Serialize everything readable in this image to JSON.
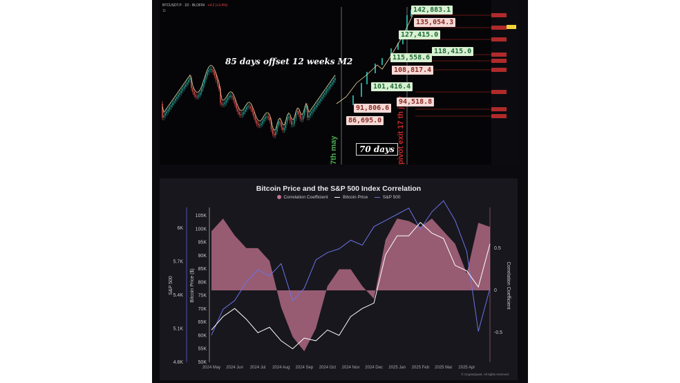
{
  "top_chart": {
    "ticker": "BTCUSDT.P · 1D · BLOFIN",
    "ticker_change": "+4.2 (+3.4%)",
    "ticker_sub": "11",
    "annotation_main": "85 days offset 12 weeks M2",
    "annotation_days": "70 days",
    "vertical_label_left": "7th may",
    "vertical_label_right": "pivot exit 17 th july",
    "colors": {
      "up": "#26a69a",
      "down": "#ef5350",
      "m2": "#f2e0a0",
      "green_label": "#4caf50",
      "red_label": "#c62828"
    },
    "price_labels": [
      {
        "text": "142,883.1",
        "style": "green"
      },
      {
        "text": "135,054.3",
        "style": "red"
      },
      {
        "text": "127,415.0",
        "style": "green"
      },
      {
        "text": "118,415.0",
        "style": "green"
      },
      {
        "text": "115,558.6",
        "style": "green"
      },
      {
        "text": "108,817.4",
        "style": "red"
      },
      {
        "text": "101,416.4",
        "style": "green"
      },
      {
        "text": "94,518.8",
        "style": "red"
      },
      {
        "text": "91,806.6",
        "style": "red"
      },
      {
        "text": "86,695.0",
        "style": "red"
      }
    ]
  },
  "chart_data": {
    "type": "line",
    "title": "Bitcoin Price and the S&P 500 Index Correlation",
    "legend": [
      "Correlation Coefficient",
      "Bitcoin Price",
      "S&P 500"
    ],
    "x_tick_labels": [
      "2024 May",
      "2024 Jun",
      "2024 Jul",
      "2024 Aug",
      "2024 Sep",
      "2024 Oct",
      "2024 Nov",
      "2024 Dec",
      "2025 Jan",
      "2025 Feb",
      "2025 Mar",
      "2025 Apr"
    ],
    "left_axis_sp500": {
      "label": "S&P 500",
      "ticks": [
        "6K",
        "5.7K",
        "5.4K",
        "5.1K",
        "4.8K"
      ],
      "ylim": [
        4800,
        6000
      ]
    },
    "left_axis_btc": {
      "label": "Bitcoin Price ($)",
      "ticks": [
        "105K",
        "100K",
        "95K",
        "90K",
        "85K",
        "80K",
        "75K",
        "70K",
        "65K",
        "60K",
        "55K",
        "50K"
      ],
      "ylim": [
        50000,
        105000
      ]
    },
    "right_axis": {
      "label": "Correlation Coefficient",
      "ticks": [
        "0.5",
        "0",
        "-0.5"
      ],
      "ylim": [
        -0.85,
        0.9
      ]
    },
    "x": [
      0,
      0.5,
      1,
      1.5,
      2,
      2.5,
      3,
      3.5,
      4,
      4.5,
      5,
      5.5,
      6,
      6.5,
      7,
      7.5,
      8,
      8.5,
      9,
      9.5,
      10,
      10.5,
      11,
      11.5,
      12
    ],
    "series": [
      {
        "name": "Correlation Coefficient",
        "color": "#c2748f",
        "values": [
          0.7,
          0.85,
          0.65,
          0.5,
          0.5,
          0.35,
          -0.2,
          -0.55,
          -0.72,
          -0.45,
          0.05,
          0.25,
          0.25,
          0.05,
          -0.1,
          0.6,
          0.85,
          0.82,
          0.75,
          0.85,
          0.7,
          0.55,
          0.2,
          0.8,
          0.75
        ]
      },
      {
        "name": "Bitcoin Price",
        "color": "#ffffff",
        "values": [
          62000,
          67000,
          70000,
          66000,
          61000,
          63000,
          58000,
          55000,
          59000,
          58000,
          62000,
          60000,
          67000,
          70000,
          72000,
          90000,
          97000,
          97000,
          102000,
          98000,
          96000,
          86000,
          84000,
          78000,
          94000
        ]
      },
      {
        "name": "S&P 500",
        "color": "#6b73e8",
        "values": [
          5020,
          5230,
          5300,
          5450,
          5550,
          5500,
          5600,
          5300,
          5400,
          5630,
          5690,
          5720,
          5790,
          5750,
          5900,
          5950,
          6000,
          6050,
          5880,
          6020,
          6110,
          5950,
          5700,
          5050,
          5400
        ]
      }
    ],
    "grid": false
  },
  "copyright": "© CryptoQuant. All rights reserved."
}
